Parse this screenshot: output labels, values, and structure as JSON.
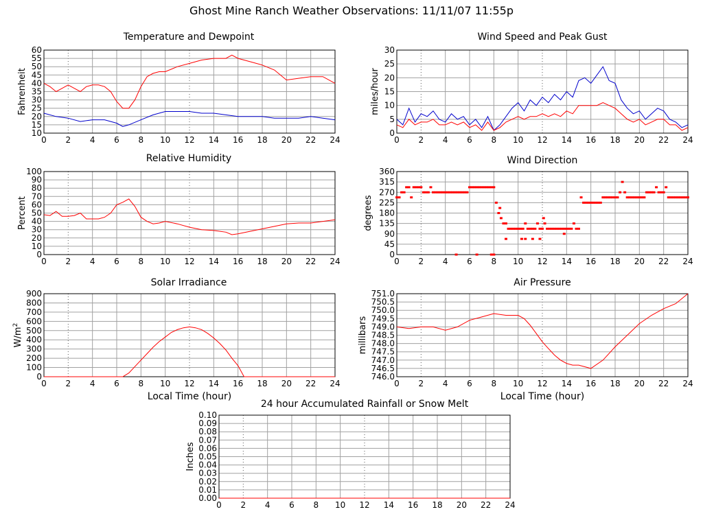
{
  "title": "Ghost Mine Ranch Weather Observations: 11/11/07 11:55p",
  "colors": {
    "red": "#ff0000",
    "blue": "#0000cc",
    "grid": "#a0a0a0"
  },
  "chart_data": [
    {
      "id": "temp",
      "type": "line",
      "title": "Temperature and Dewpoint",
      "ylabel": "Fahrenheit",
      "xlabel": "",
      "xlim": [
        0,
        24
      ],
      "ylim": [
        10,
        60
      ],
      "xticks": [
        "0",
        "2",
        "4",
        "6",
        "8",
        "10",
        "12",
        "14",
        "16",
        "18",
        "20",
        "22",
        "24"
      ],
      "yticks": [
        "10",
        "15",
        "20",
        "25",
        "30",
        "35",
        "40",
        "45",
        "50",
        "55",
        "60"
      ],
      "series": [
        {
          "color": "#ff0000",
          "x": [
            0,
            0.5,
            1,
            1.5,
            2,
            2.5,
            3,
            3.5,
            4,
            4.5,
            5,
            5.5,
            6,
            6.5,
            7,
            7.5,
            8,
            8.5,
            9,
            9.5,
            10,
            11,
            12,
            13,
            14,
            15,
            15.5,
            16,
            17,
            18,
            19,
            20,
            21,
            22,
            23,
            24
          ],
          "y": [
            40,
            38,
            35,
            37,
            39,
            37,
            35,
            38,
            39,
            39,
            38,
            35,
            29,
            25,
            25,
            30,
            38,
            44,
            46,
            47,
            47,
            50,
            52,
            54,
            55,
            55,
            57,
            55,
            53,
            51,
            48,
            42,
            43,
            44,
            44,
            40
          ]
        },
        {
          "color": "#0000cc",
          "x": [
            0,
            1,
            2,
            3,
            4,
            5,
            6,
            6.5,
            7,
            8,
            9,
            10,
            11,
            12,
            13,
            14,
            15,
            16,
            17,
            18,
            19,
            20,
            21,
            22,
            23,
            24
          ],
          "y": [
            22,
            20,
            19,
            17,
            18,
            18,
            16,
            14,
            15,
            18,
            21,
            23,
            23,
            23,
            22,
            22,
            21,
            20,
            20,
            20,
            19,
            19,
            19,
            20,
            19,
            18
          ]
        }
      ]
    },
    {
      "id": "wind",
      "type": "line",
      "title": "Wind Speed and Peak Gust",
      "ylabel": "miles/hour",
      "xlabel": "",
      "xlim": [
        0,
        24
      ],
      "ylim": [
        0,
        30
      ],
      "xticks": [
        "0",
        "2",
        "4",
        "6",
        "8",
        "10",
        "12",
        "14",
        "16",
        "18",
        "20",
        "22",
        "24"
      ],
      "yticks": [
        "0",
        "5",
        "10",
        "15",
        "20",
        "25",
        "30"
      ],
      "series": [
        {
          "color": "#0000cc",
          "x": [
            0,
            0.5,
            1,
            1.5,
            2,
            2.5,
            3,
            3.5,
            4,
            4.5,
            5,
            5.5,
            6,
            6.5,
            7,
            7.5,
            8,
            8.5,
            9,
            9.5,
            10,
            10.5,
            11,
            11.5,
            12,
            12.5,
            13,
            13.5,
            14,
            14.5,
            15,
            15.5,
            16,
            16.5,
            17,
            17.5,
            18,
            18.5,
            19,
            19.5,
            20,
            20.5,
            21,
            21.5,
            22,
            22.5,
            23,
            23.5,
            24
          ],
          "y": [
            5,
            3,
            9,
            4,
            7,
            6,
            8,
            5,
            4,
            7,
            5,
            6,
            3,
            5,
            2,
            6,
            1,
            3,
            6,
            9,
            11,
            8,
            12,
            10,
            13,
            11,
            14,
            12,
            15,
            13,
            19,
            20,
            18,
            21,
            24,
            19,
            18,
            12,
            9,
            7,
            8,
            5,
            7,
            9,
            8,
            5,
            4,
            2,
            3
          ]
        },
        {
          "color": "#ff0000",
          "x": [
            0,
            0.5,
            1,
            1.5,
            2,
            2.5,
            3,
            3.5,
            4,
            4.5,
            5,
            5.5,
            6,
            6.5,
            7,
            7.5,
            8,
            8.5,
            9,
            9.5,
            10,
            10.5,
            11,
            11.5,
            12,
            12.5,
            13,
            13.5,
            14,
            14.5,
            15,
            15.5,
            16,
            16.5,
            17,
            17.5,
            18,
            18.5,
            19,
            19.5,
            20,
            20.5,
            21,
            21.5,
            22,
            22.5,
            23,
            23.5,
            24
          ],
          "y": [
            3,
            2,
            5,
            3,
            4,
            4,
            5,
            3,
            3,
            4,
            3,
            4,
            2,
            3,
            1,
            4,
            1,
            2,
            4,
            5,
            6,
            5,
            6,
            6,
            7,
            6,
            7,
            6,
            8,
            7,
            10,
            10,
            10,
            10,
            11,
            10,
            9,
            7,
            5,
            4,
            5,
            3,
            4,
            5,
            5,
            3,
            3,
            1,
            2
          ]
        }
      ]
    },
    {
      "id": "humidity",
      "type": "line",
      "title": "Relative Humidity",
      "ylabel": "Percent",
      "xlabel": "",
      "xlim": [
        0,
        24
      ],
      "ylim": [
        0,
        100
      ],
      "xticks": [
        "0",
        "2",
        "4",
        "6",
        "8",
        "10",
        "12",
        "14",
        "16",
        "18",
        "20",
        "22",
        "24"
      ],
      "yticks": [
        "0",
        "10",
        "20",
        "30",
        "40",
        "50",
        "60",
        "70",
        "80",
        "90",
        "100"
      ],
      "series": [
        {
          "color": "#ff0000",
          "x": [
            0,
            0.5,
            1,
            1.5,
            2,
            2.5,
            3,
            3.5,
            4,
            4.5,
            5,
            5.5,
            6,
            6.5,
            7,
            7.5,
            8,
            8.5,
            9,
            9.5,
            10,
            11,
            12,
            13,
            14,
            15,
            15.5,
            16,
            17,
            18,
            19,
            20,
            21,
            22,
            23,
            24
          ],
          "y": [
            48,
            47,
            52,
            46,
            46,
            47,
            50,
            43,
            43,
            43,
            45,
            50,
            60,
            63,
            67,
            58,
            45,
            40,
            37,
            38,
            40,
            37,
            33,
            30,
            29,
            27,
            24,
            25,
            28,
            31,
            34,
            37,
            38,
            38,
            40,
            42
          ]
        }
      ]
    },
    {
      "id": "direction",
      "type": "scatter",
      "title": "Wind Direction",
      "ylabel": "degrees",
      "xlabel": "",
      "xlim": [
        0,
        24
      ],
      "ylim": [
        0,
        360
      ],
      "xticks": [
        "0",
        "2",
        "4",
        "6",
        "8",
        "10",
        "12",
        "14",
        "16",
        "18",
        "20",
        "22",
        "24"
      ],
      "yticks": [
        "0",
        "45",
        "90",
        "135",
        "180",
        "225",
        "270",
        "315",
        "360"
      ],
      "series": [
        {
          "color": "#ff0000",
          "x": [
            0,
            0.2,
            0.4,
            0.6,
            0.8,
            1,
            1.2,
            1.4,
            1.6,
            1.8,
            2,
            2.2,
            2.4,
            2.6,
            2.8,
            3,
            3.2,
            3.4,
            3.6,
            3.8,
            4,
            4.2,
            4.4,
            4.6,
            4.8,
            5,
            5.2,
            5.4,
            5.6,
            5.8,
            6,
            6.2,
            6.4,
            6.6,
            6.8,
            7,
            7.2,
            7.4,
            7.6,
            7.8,
            8,
            8.2,
            8.4,
            8.6,
            8.8,
            9,
            9.2,
            9.4,
            9.6,
            9.8,
            10,
            10.2,
            10.4,
            10.6,
            10.8,
            11,
            11.2,
            11.4,
            11.6,
            11.8,
            12,
            12.2,
            12.4,
            12.6,
            12.8,
            13,
            13.2,
            13.4,
            13.6,
            13.8,
            14,
            14.2,
            14.4,
            14.6,
            14.8,
            15,
            15.2,
            15.4,
            15.6,
            15.8,
            16,
            16.2,
            16.4,
            16.6,
            16.8,
            17,
            17.2,
            17.4,
            17.6,
            17.8,
            18,
            18.2,
            18.4,
            18.6,
            18.8,
            19,
            19.2,
            19.4,
            19.6,
            19.8,
            20,
            20.2,
            20.4,
            20.6,
            20.8,
            21,
            21.2,
            21.4,
            21.6,
            21.8,
            22,
            22.2,
            22.4,
            22.6,
            22.8,
            23,
            23.2,
            23.4,
            23.6,
            23.8,
            24,
            4.9,
            6.6,
            7.8,
            8.0,
            10.6,
            11.2,
            11.8,
            10.3,
            13.8,
            9.0,
            8.5,
            12.1
          ],
          "y": [
            248,
            248,
            270,
            270,
            292,
            292,
            248,
            292,
            292,
            292,
            292,
            270,
            270,
            270,
            292,
            270,
            270,
            270,
            270,
            270,
            270,
            270,
            270,
            270,
            270,
            270,
            270,
            270,
            270,
            270,
            292,
            292,
            292,
            292,
            292,
            292,
            292,
            292,
            292,
            292,
            292,
            225,
            180,
            158,
            135,
            135,
            112,
            112,
            112,
            112,
            112,
            112,
            112,
            135,
            112,
            112,
            112,
            112,
            135,
            112,
            112,
            135,
            112,
            112,
            112,
            112,
            112,
            112,
            112,
            112,
            112,
            112,
            112,
            135,
            112,
            112,
            248,
            225,
            225,
            225,
            225,
            225,
            225,
            225,
            225,
            248,
            248,
            248,
            248,
            248,
            248,
            248,
            270,
            315,
            270,
            248,
            248,
            248,
            248,
            248,
            248,
            248,
            248,
            270,
            270,
            270,
            270,
            292,
            270,
            270,
            270,
            292,
            248,
            248,
            248,
            248,
            248,
            248,
            248,
            248,
            248,
            0,
            0,
            0,
            0,
            68,
            68,
            68,
            68,
            90,
            68,
            202,
            158
          ]
        }
      ]
    },
    {
      "id": "solar",
      "type": "line",
      "title": "Solar Irradiance",
      "ylabel": "W/m2",
      "xlabel": "Local Time (hour)",
      "xlim": [
        0,
        24
      ],
      "ylim": [
        0,
        900
      ],
      "xticks": [
        "0",
        "2",
        "4",
        "6",
        "8",
        "10",
        "12",
        "14",
        "16",
        "18",
        "20",
        "22",
        "24"
      ],
      "yticks": [
        "0",
        "100",
        "200",
        "300",
        "400",
        "500",
        "600",
        "700",
        "800",
        "900"
      ],
      "series": [
        {
          "color": "#ff0000",
          "x": [
            0,
            6.5,
            7,
            7.5,
            8,
            8.5,
            9,
            9.5,
            10,
            10.5,
            11,
            11.5,
            12,
            12.5,
            13,
            13.5,
            14,
            14.5,
            15,
            15.5,
            16,
            16.5,
            17,
            24
          ],
          "y": [
            0,
            0,
            40,
            110,
            180,
            250,
            320,
            380,
            430,
            480,
            510,
            530,
            540,
            530,
            510,
            470,
            420,
            360,
            290,
            200,
            120,
            0,
            0,
            0
          ]
        }
      ]
    },
    {
      "id": "pressure",
      "type": "line",
      "title": "Air Pressure",
      "ylabel": "millibars",
      "xlabel": "Local Time (hour)",
      "xlim": [
        0,
        24
      ],
      "ylim": [
        746.0,
        751.0
      ],
      "xticks": [
        "0",
        "2",
        "4",
        "6",
        "8",
        "10",
        "12",
        "14",
        "16",
        "18",
        "20",
        "22",
        "24"
      ],
      "yticks": [
        "746.0",
        "746.5",
        "747.0",
        "747.5",
        "748.0",
        "748.5",
        "749.0",
        "749.5",
        "750.0",
        "750.5",
        "751.0"
      ],
      "series": [
        {
          "color": "#ff0000",
          "x": [
            0,
            1,
            2,
            3,
            4,
            5,
            6,
            7,
            8,
            9,
            10,
            10.5,
            11,
            11.5,
            12,
            12.5,
            13,
            13.5,
            14,
            14.5,
            15,
            15.5,
            16,
            17,
            18,
            19,
            20,
            21,
            22,
            23,
            24
          ],
          "y": [
            749.0,
            748.9,
            749.0,
            749.0,
            748.8,
            749.0,
            749.4,
            749.6,
            749.8,
            749.7,
            749.7,
            749.5,
            749.1,
            748.6,
            748.1,
            747.7,
            747.3,
            747.0,
            746.8,
            746.7,
            746.7,
            746.6,
            746.5,
            747.0,
            747.8,
            748.5,
            749.2,
            749.7,
            750.1,
            750.4,
            751.0
          ]
        }
      ]
    },
    {
      "id": "rain",
      "type": "line",
      "title": "24 hour Accumulated Rainfall or Snow Melt",
      "ylabel": "Inches",
      "xlabel": "",
      "xlim": [
        0,
        24
      ],
      "ylim": [
        0,
        0.1
      ],
      "xticks": [
        "0",
        "2",
        "4",
        "6",
        "8",
        "10",
        "12",
        "14",
        "16",
        "18",
        "20",
        "22",
        "24"
      ],
      "yticks": [
        "0.00",
        "0.01",
        "0.02",
        "0.03",
        "0.04",
        "0.05",
        "0.06",
        "0.07",
        "0.08",
        "0.09",
        "0.10"
      ],
      "series": [
        {
          "color": "#ff0000",
          "x": [
            0,
            24
          ],
          "y": [
            0,
            0
          ]
        }
      ]
    }
  ]
}
